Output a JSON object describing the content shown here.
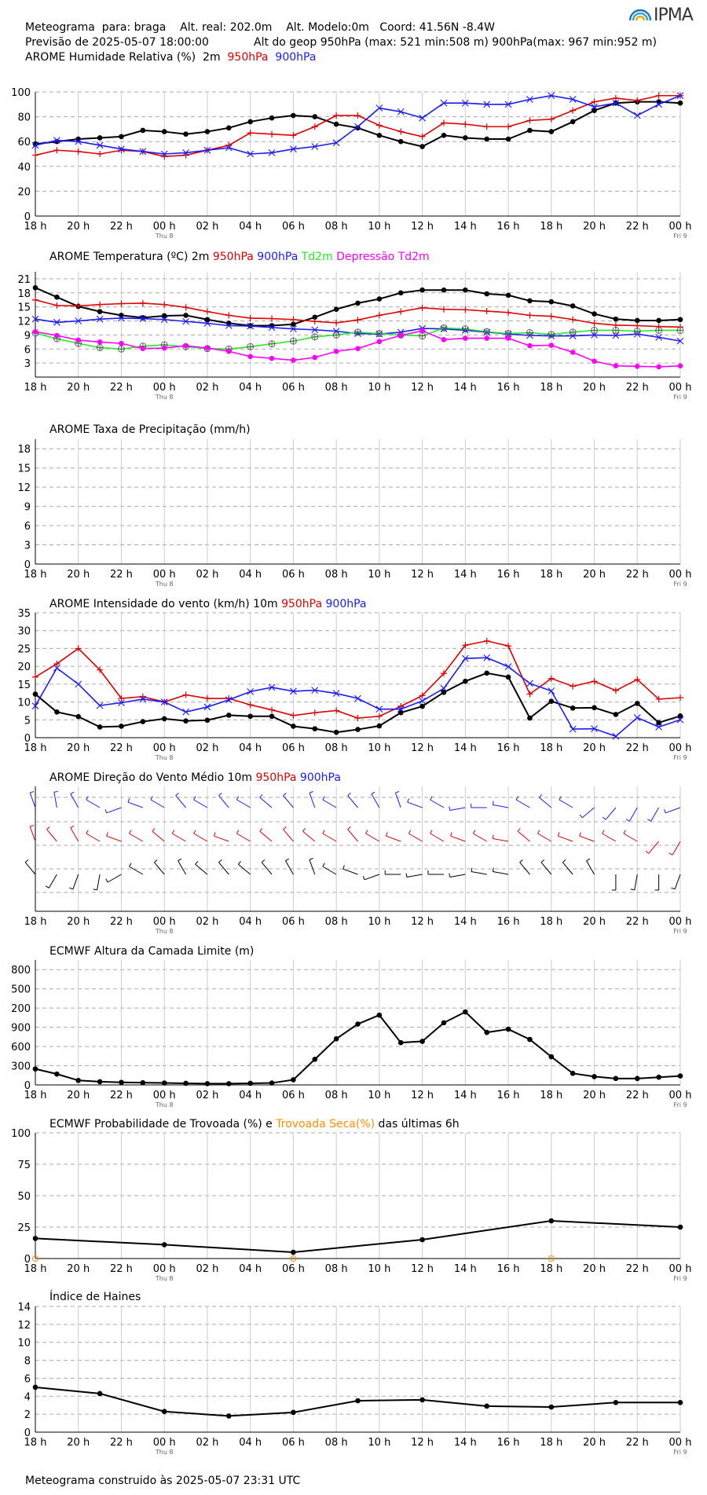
{
  "header": {
    "line1": "Meteograma  para: braga    Alt. real: 202.0m    Alt. Modelo:0m   Coord: 41.56N -8.4W",
    "line2a": "Previsão de 2025-05-07 18:00:00",
    "line2b": "Alt do geop 950hPa (max: 521 min:508 m) 900hPa(max: 967 min:952 m)",
    "line3a": "AROME Humidade Relativa (%)  2m",
    "line3b": "950hPa",
    "line3c": "900hPa",
    "logo": "IPMA"
  },
  "footer": "Meteograma construido às 2025-05-07 23:31 UTC",
  "colors": {
    "black": "#000000",
    "red": "#e00000",
    "blue": "#1a1aff",
    "green": "#22ee22",
    "magenta": "#ff00ff",
    "orange": "#ff8c00"
  },
  "x_ticks": [
    "18 h",
    "20 h",
    "22 h",
    "00 h",
    "02 h",
    "04 h",
    "06 h",
    "08 h",
    "10 h",
    "12 h",
    "14 h",
    "16 h",
    "18 h",
    "20 h",
    "22 h",
    "00 h"
  ],
  "x_sublabels": [
    {
      "at": 6,
      "text": "Thu 8"
    },
    {
      "at": 30,
      "text": "Fri 9"
    }
  ],
  "chart_data": [
    {
      "id": "humidity",
      "type": "line",
      "title": "",
      "ylim": [
        0,
        100
      ],
      "yticks": [
        "0",
        "20",
        "40",
        "60",
        "80",
        "100"
      ],
      "x": [
        0,
        1,
        2,
        3,
        4,
        5,
        6,
        7,
        8,
        9,
        10,
        11,
        12,
        13,
        14,
        15,
        16,
        17,
        18,
        19,
        20,
        21,
        22,
        23,
        24,
        25,
        26,
        27,
        28,
        29,
        30
      ],
      "series": [
        {
          "name": "2m",
          "color": "black",
          "marker": "dot",
          "values": [
            58,
            60,
            62,
            63,
            64,
            69,
            68,
            66,
            68,
            71,
            76,
            79,
            81,
            80,
            74,
            71,
            65,
            60,
            56,
            65,
            63,
            62,
            62,
            69,
            68,
            76,
            85,
            91,
            92,
            92,
            91
          ]
        },
        {
          "name": "950hPa",
          "color": "red",
          "marker": "plus",
          "values": [
            49,
            53,
            52,
            50,
            53,
            52,
            48,
            49,
            53,
            57,
            67,
            66,
            65,
            72,
            81,
            81,
            73,
            68,
            64,
            75,
            74,
            72,
            72,
            77,
            78,
            85,
            92,
            95,
            93,
            97,
            97
          ]
        },
        {
          "name": "900hPa",
          "color": "blue",
          "marker": "x",
          "values": [
            57,
            61,
            60,
            57,
            54,
            52,
            50,
            51,
            53,
            55,
            50,
            51,
            54,
            56,
            59,
            72,
            87,
            84,
            79,
            91,
            91,
            90,
            90,
            94,
            97,
            94,
            88,
            91,
            81,
            90,
            97
          ]
        }
      ]
    },
    {
      "id": "temperature",
      "type": "line",
      "title_parts": [
        {
          "text": "AROME Temperatura (ºC)  2m",
          "color": "black"
        },
        {
          "text": "950hPa",
          "color": "red"
        },
        {
          "text": "900hPa",
          "color": "blue"
        },
        {
          "text": "Td2m",
          "color": "green"
        },
        {
          "text": "Depressão Td2m",
          "color": "magenta"
        }
      ],
      "ylim": [
        0,
        22.5
      ],
      "yticks": [
        "3",
        "6",
        "9",
        "12",
        "15",
        "18",
        "21"
      ],
      "x": [
        0,
        1,
        2,
        3,
        4,
        5,
        6,
        7,
        8,
        9,
        10,
        11,
        12,
        13,
        14,
        15,
        16,
        17,
        18,
        19,
        20,
        21,
        22,
        23,
        24,
        25,
        26,
        27,
        28,
        29,
        30
      ],
      "series": [
        {
          "name": "2m",
          "color": "black",
          "marker": "dot",
          "values": [
            19.1,
            17.1,
            15.1,
            14.0,
            13.2,
            12.7,
            13.1,
            13.2,
            12.3,
            11.5,
            11.0,
            11.0,
            11.3,
            12.8,
            14.5,
            15.8,
            16.7,
            18.0,
            18.6,
            18.6,
            18.6,
            17.8,
            17.5,
            16.3,
            16.1,
            15.2,
            13.5,
            12.4,
            12.1,
            12.1,
            12.3
          ]
        },
        {
          "name": "950hPa",
          "color": "red",
          "marker": "plus",
          "values": [
            16.5,
            15.3,
            15.2,
            15.5,
            15.7,
            15.8,
            15.5,
            14.9,
            14.0,
            13.2,
            12.6,
            12.5,
            12.3,
            11.9,
            11.6,
            12.2,
            13.2,
            14.0,
            14.8,
            14.5,
            14.4,
            14.1,
            13.8,
            13.2,
            13.0,
            12.3,
            11.5,
            11.1,
            11.0,
            10.8,
            10.7
          ]
        },
        {
          "name": "900hPa",
          "color": "blue",
          "marker": "x",
          "values": [
            12.4,
            11.7,
            12.0,
            12.4,
            12.6,
            12.5,
            12.3,
            11.9,
            11.5,
            11.0,
            10.9,
            10.6,
            10.3,
            10.1,
            9.8,
            9.3,
            9.2,
            9.6,
            10.4,
            10.3,
            10.0,
            9.6,
            9.2,
            8.9,
            8.8,
            8.8,
            9.0,
            8.9,
            9.2,
            8.5,
            7.7
          ]
        },
        {
          "name": "Td2m",
          "color": "green",
          "marker": "circle-plus",
          "values": [
            9.4,
            8.2,
            7.2,
            6.3,
            6.0,
            6.6,
            6.9,
            6.5,
            6.1,
            6.0,
            6.5,
            7.1,
            7.7,
            8.6,
            9.0,
            9.6,
            9.3,
            9.0,
            8.8,
            10.5,
            10.3,
            9.7,
            9.3,
            9.5,
            9.1,
            9.6,
            10.0,
            10.0,
            9.8,
            10.0,
            10.0
          ]
        },
        {
          "name": "Depressão Td2m",
          "color": "magenta",
          "marker": "dot",
          "values": [
            9.7,
            8.9,
            7.9,
            7.5,
            7.2,
            6.1,
            6.2,
            6.7,
            6.2,
            5.5,
            4.4,
            4.0,
            3.6,
            4.2,
            5.5,
            6.1,
            7.6,
            8.9,
            9.9,
            8.0,
            8.3,
            8.3,
            8.3,
            6.7,
            6.8,
            5.3,
            3.4,
            2.4,
            2.3,
            2.2,
            2.4
          ]
        }
      ]
    },
    {
      "id": "precipitation",
      "type": "line",
      "title_parts": [
        {
          "text": "AROME Taxa de Precipitação (mm/h)",
          "color": "black"
        }
      ],
      "ylim": [
        0,
        19.5
      ],
      "yticks": [
        "0",
        "3",
        "6",
        "9",
        "12",
        "15",
        "18"
      ],
      "series": []
    },
    {
      "id": "wind_speed",
      "type": "line",
      "title_parts": [
        {
          "text": "AROME Intensidade do vento (km/h)   10m",
          "color": "black"
        },
        {
          "text": "950hPa",
          "color": "red"
        },
        {
          "text": "900hPa",
          "color": "blue"
        }
      ],
      "ylim": [
        0,
        35
      ],
      "yticks": [
        "0",
        "5",
        "10",
        "15",
        "20",
        "25",
        "30",
        "35"
      ],
      "x": [
        0,
        1,
        2,
        3,
        4,
        5,
        6,
        7,
        8,
        9,
        10,
        11,
        12,
        13,
        14,
        15,
        16,
        17,
        18,
        19,
        20,
        21,
        22,
        23,
        24,
        25,
        26,
        27,
        28,
        29,
        30
      ],
      "series": [
        {
          "name": "10m",
          "color": "black",
          "marker": "dot",
          "values": [
            12.2,
            7.2,
            5.9,
            3.0,
            3.2,
            4.5,
            5.3,
            4.7,
            4.9,
            6.3,
            6.0,
            6.0,
            3.2,
            2.5,
            1.5,
            2.3,
            3.3,
            7.0,
            8.8,
            12.7,
            15.8,
            18.1,
            17.0,
            5.5,
            10.2,
            8.3,
            8.4,
            6.5,
            9.6,
            4.2,
            6.1
          ]
        },
        {
          "name": "950hPa",
          "color": "red",
          "marker": "plus",
          "values": [
            17.0,
            20.7,
            25.0,
            19.0,
            11.0,
            11.5,
            10.0,
            12.0,
            11.0,
            11.0,
            9.2,
            7.8,
            6.2,
            7.0,
            7.6,
            5.5,
            6.0,
            8.8,
            11.8,
            18.0,
            25.9,
            27.1,
            25.7,
            12.2,
            16.6,
            14.4,
            15.8,
            13.2,
            16.3,
            10.8,
            11.2
          ]
        },
        {
          "name": "900hPa",
          "color": "blue",
          "marker": "x",
          "values": [
            8.9,
            19.5,
            15.0,
            9.0,
            9.8,
            10.8,
            10.0,
            7.2,
            8.6,
            10.6,
            12.9,
            14.1,
            13.0,
            13.3,
            12.4,
            11.0,
            8.0,
            8.0,
            10.3,
            13.8,
            22.2,
            22.4,
            19.9,
            15.2,
            13.1,
            2.4,
            2.5,
            0.4,
            5.6,
            3.0,
            5.0
          ]
        }
      ]
    },
    {
      "id": "wind_direction",
      "type": "barbs",
      "title_parts": [
        {
          "text": "AROME Direção do Vento Médio   10m",
          "color": "black"
        },
        {
          "text": "950hPa",
          "color": "red"
        },
        {
          "text": "900hPa",
          "color": "blue"
        }
      ],
      "levels": [
        {
          "name": "900hPa",
          "color": "blue",
          "dirs": [
            340,
            350,
            330,
            300,
            250,
            290,
            300,
            320,
            300,
            320,
            300,
            310,
            320,
            340,
            300,
            320,
            330,
            340,
            290,
            300,
            260,
            270,
            280,
            300,
            310,
            300,
            230,
            220,
            210,
            210,
            250
          ]
        },
        {
          "name": "950hPa",
          "color": "red",
          "dirs": [
            340,
            320,
            330,
            300,
            290,
            300,
            310,
            300,
            300,
            290,
            300,
            310,
            320,
            310,
            300,
            320,
            300,
            290,
            300,
            300,
            290,
            300,
            280,
            310,
            300,
            290,
            290,
            300,
            300,
            220,
            210
          ]
        },
        {
          "name": "10m",
          "color": "black",
          "dirs": [
            320,
            210,
            200,
            190,
            240,
            300,
            320,
            330,
            310,
            320,
            310,
            320,
            330,
            340,
            300,
            290,
            250,
            270,
            260,
            270,
            260,
            280,
            280,
            320,
            320,
            320,
            330,
            180,
            190,
            180,
            200
          ]
        }
      ]
    },
    {
      "id": "boundary_layer",
      "type": "line",
      "title_parts": [
        {
          "text": "ECMWF Altura da Camada Limite (m)",
          "color": "black"
        }
      ],
      "ylim": [
        0,
        1950
      ],
      "yticks": [
        "0",
        "300",
        "600",
        "900",
        "1200",
        "1500",
        "1800"
      ],
      "tick_display": [
        "0",
        "300",
        "600",
        "900",
        "200",
        "500",
        "800"
      ],
      "x": [
        0,
        1,
        2,
        3,
        4,
        5,
        6,
        7,
        8,
        9,
        10,
        11,
        12,
        13,
        14,
        15,
        16,
        17,
        18,
        19,
        20,
        21,
        22,
        23,
        24,
        25,
        26,
        27,
        28,
        29,
        30
      ],
      "series": [
        {
          "name": "",
          "color": "black",
          "marker": "dot",
          "values": [
            250,
            170,
            70,
            50,
            40,
            35,
            30,
            25,
            20,
            20,
            25,
            30,
            80,
            400,
            720,
            950,
            1090,
            660,
            680,
            970,
            1140,
            820,
            870,
            710,
            440,
            180,
            130,
            100,
            100,
            120,
            140
          ]
        }
      ]
    },
    {
      "id": "thunder",
      "type": "line",
      "title_parts": [
        {
          "text": "ECMWF Probabilidade de Trovoada (%) e",
          "color": "black"
        },
        {
          "text": "Trovoada Seca(%)",
          "color": "orange"
        },
        {
          "text": "das últimas 6h",
          "color": "black"
        }
      ],
      "ylim": [
        0,
        100
      ],
      "yticks": [
        "0",
        "25",
        "50",
        "75",
        "100"
      ],
      "x": [
        0,
        6,
        12,
        18,
        24,
        30
      ],
      "series": [
        {
          "name": "Probabilidade de Trovoada",
          "color": "black",
          "marker": "dot",
          "values": [
            16,
            11,
            5,
            15,
            30,
            25
          ]
        },
        {
          "name": "Trovoada Seca",
          "color": "orange",
          "marker": "open-circle",
          "values": [
            0,
            null,
            0,
            null,
            0,
            null
          ]
        }
      ]
    },
    {
      "id": "haines",
      "type": "line",
      "title_parts": [
        {
          "text": "Índice de Haines",
          "color": "black"
        }
      ],
      "ylim": [
        0,
        14
      ],
      "yticks": [
        "0",
        "2",
        "4",
        "6",
        "8",
        "10",
        "12",
        "14"
      ],
      "x": [
        0,
        3,
        6,
        9,
        12,
        15,
        18,
        21,
        24,
        27,
        30
      ],
      "series": [
        {
          "name": "",
          "color": "black",
          "marker": "dot",
          "values": [
            5.0,
            4.3,
            2.3,
            1.8,
            2.2,
            3.5,
            3.6,
            2.9,
            2.8,
            3.3,
            3.3
          ]
        }
      ]
    }
  ]
}
